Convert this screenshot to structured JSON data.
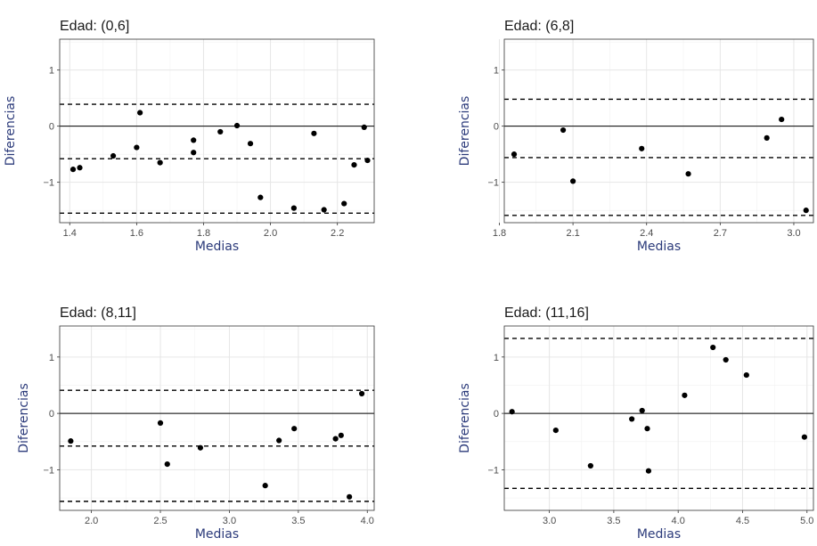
{
  "chart_data": [
    {
      "type": "scatter",
      "title": "Edad: (0,6]",
      "xlabel": "Medias",
      "ylabel": "Diferencias",
      "xlim": [
        1.37,
        2.31
      ],
      "ylim": [
        -1.72,
        1.55
      ],
      "xticks": [
        1.4,
        1.6,
        1.8,
        2.0,
        2.2
      ],
      "xtick_labels": [
        "1.4",
        "1.6",
        "1.8",
        "2.0",
        "2.2"
      ],
      "yticks": [
        -1,
        0,
        1
      ],
      "ytick_labels": [
        "−1",
        "0",
        "1"
      ],
      "hlines": {
        "solid": [
          0
        ],
        "dashed": [
          0.39,
          -0.58,
          -1.55
        ]
      },
      "grid": true,
      "points": [
        {
          "x": 1.41,
          "y": -0.77
        },
        {
          "x": 1.43,
          "y": -0.74
        },
        {
          "x": 1.53,
          "y": -0.53
        },
        {
          "x": 1.6,
          "y": -0.38
        },
        {
          "x": 1.61,
          "y": 0.24
        },
        {
          "x": 1.67,
          "y": -0.65
        },
        {
          "x": 1.77,
          "y": -0.25
        },
        {
          "x": 1.77,
          "y": -0.47
        },
        {
          "x": 1.85,
          "y": -0.1
        },
        {
          "x": 1.9,
          "y": 0.01
        },
        {
          "x": 1.94,
          "y": -0.31
        },
        {
          "x": 1.97,
          "y": -1.27
        },
        {
          "x": 2.07,
          "y": -1.46
        },
        {
          "x": 2.13,
          "y": -0.13
        },
        {
          "x": 2.16,
          "y": -1.49
        },
        {
          "x": 2.22,
          "y": -1.38
        },
        {
          "x": 2.25,
          "y": -0.69
        },
        {
          "x": 2.28,
          "y": -0.02
        },
        {
          "x": 2.29,
          "y": -0.61
        }
      ]
    },
    {
      "type": "scatter",
      "title": "Edad: (6,8]",
      "xlabel": "Medias",
      "ylabel": "Diferencias",
      "xlim": [
        1.82,
        3.08
      ],
      "ylim": [
        -1.72,
        1.55
      ],
      "xticks": [
        1.8,
        2.1,
        2.4,
        2.7,
        3.0
      ],
      "xtick_labels": [
        "1.8",
        "2.1",
        "2.4",
        "2.7",
        "3.0"
      ],
      "yticks": [
        -1,
        0,
        1
      ],
      "ytick_labels": [
        "−1",
        "0",
        "1"
      ],
      "hlines": {
        "solid": [
          0
        ],
        "dashed": [
          0.48,
          -0.56,
          -1.59
        ]
      },
      "grid": true,
      "points": [
        {
          "x": 1.86,
          "y": -0.5
        },
        {
          "x": 2.06,
          "y": -0.07
        },
        {
          "x": 2.1,
          "y": -0.98
        },
        {
          "x": 2.38,
          "y": -0.4
        },
        {
          "x": 2.57,
          "y": -0.85
        },
        {
          "x": 2.89,
          "y": -0.21
        },
        {
          "x": 2.95,
          "y": 0.12
        },
        {
          "x": 3.05,
          "y": -1.5
        }
      ]
    },
    {
      "type": "scatter",
      "title": "Edad: (8,11]",
      "xlabel": "Medias",
      "ylabel": "Diferencias",
      "xlim": [
        1.77,
        4.05
      ],
      "ylim": [
        -1.72,
        1.55
      ],
      "xticks": [
        2.0,
        2.5,
        3.0,
        3.5,
        4.0
      ],
      "xtick_labels": [
        "2.0",
        "2.5",
        "3.0",
        "3.5",
        "4.0"
      ],
      "yticks": [
        -1,
        0,
        1
      ],
      "ytick_labels": [
        "−1",
        "0",
        "1"
      ],
      "hlines": {
        "solid": [
          0
        ],
        "dashed": [
          0.41,
          -0.58,
          -1.56
        ]
      },
      "grid": true,
      "points": [
        {
          "x": 1.85,
          "y": -0.49
        },
        {
          "x": 2.5,
          "y": -0.17
        },
        {
          "x": 2.55,
          "y": -0.9
        },
        {
          "x": 2.79,
          "y": -0.61
        },
        {
          "x": 3.26,
          "y": -1.28
        },
        {
          "x": 3.36,
          "y": -0.48
        },
        {
          "x": 3.47,
          "y": -0.27
        },
        {
          "x": 3.77,
          "y": -0.45
        },
        {
          "x": 3.81,
          "y": -0.39
        },
        {
          "x": 3.87,
          "y": -1.48
        },
        {
          "x": 3.96,
          "y": 0.35
        }
      ]
    },
    {
      "type": "scatter",
      "title": "Edad: (11,16]",
      "xlabel": "Medias",
      "ylabel": "Diferencias",
      "xlim": [
        2.65,
        5.05
      ],
      "ylim": [
        -1.72,
        1.55
      ],
      "xticks": [
        3.0,
        3.5,
        4.0,
        4.5,
        5.0
      ],
      "xtick_labels": [
        "3.0",
        "3.5",
        "4.0",
        "4.5",
        "5.0"
      ],
      "yticks": [
        -1,
        0,
        1
      ],
      "ytick_labels": [
        "−1",
        "0",
        "1"
      ],
      "hlines": {
        "solid": [
          0
        ],
        "dashed": [
          1.33,
          -1.33
        ]
      },
      "grid": true,
      "points": [
        {
          "x": 2.71,
          "y": 0.03
        },
        {
          "x": 3.05,
          "y": -0.3
        },
        {
          "x": 3.32,
          "y": -0.93
        },
        {
          "x": 3.64,
          "y": -0.1
        },
        {
          "x": 3.72,
          "y": 0.05
        },
        {
          "x": 3.76,
          "y": -0.27
        },
        {
          "x": 3.77,
          "y": -1.02
        },
        {
          "x": 4.05,
          "y": 0.32
        },
        {
          "x": 4.27,
          "y": 1.17
        },
        {
          "x": 4.37,
          "y": 0.95
        },
        {
          "x": 4.53,
          "y": 0.68
        },
        {
          "x": 4.98,
          "y": -0.42
        }
      ]
    }
  ]
}
